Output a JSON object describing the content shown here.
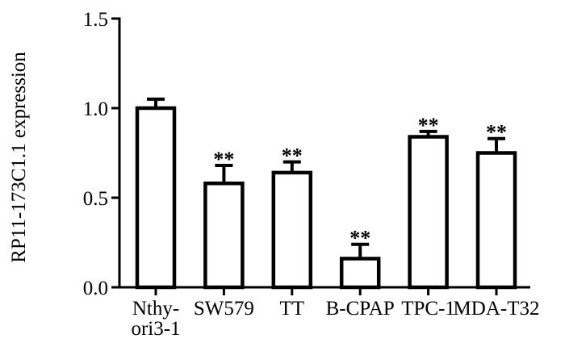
{
  "page": {
    "background": "#ffffff"
  },
  "chart_data": {
    "type": "bar",
    "title": "",
    "xlabel": "",
    "ylabel": "RP11-173C1.1 expression",
    "categories": [
      "Nthy-ori3-1",
      "SW579",
      "TT",
      "B-CPAP",
      "TPC-1",
      "MDA-T32"
    ],
    "category_label_lines": [
      [
        "Nthy-",
        "ori3-1"
      ],
      [
        "SW579"
      ],
      [
        "TT"
      ],
      [
        "B-CPAP"
      ],
      [
        "TPC-1"
      ],
      [
        "MDA-T32"
      ]
    ],
    "values": [
      1.0,
      0.58,
      0.64,
      0.16,
      0.84,
      0.75
    ],
    "errors": [
      0.05,
      0.1,
      0.06,
      0.08,
      0.03,
      0.08
    ],
    "error_style": "upper_only",
    "significance": [
      "",
      "**",
      "**",
      "**",
      "**",
      "**"
    ],
    "ylim": [
      0,
      1.5
    ],
    "yticks": [
      0,
      0.5,
      1,
      1.5
    ],
    "ytick_labels": [
      "0.0",
      "0.5",
      "1.0",
      "1.5"
    ],
    "grid": false,
    "legend": null,
    "bar_fill": "#ffffff",
    "bar_stroke": "#000000",
    "axis_color": "#000000",
    "text_color": "#000000"
  }
}
